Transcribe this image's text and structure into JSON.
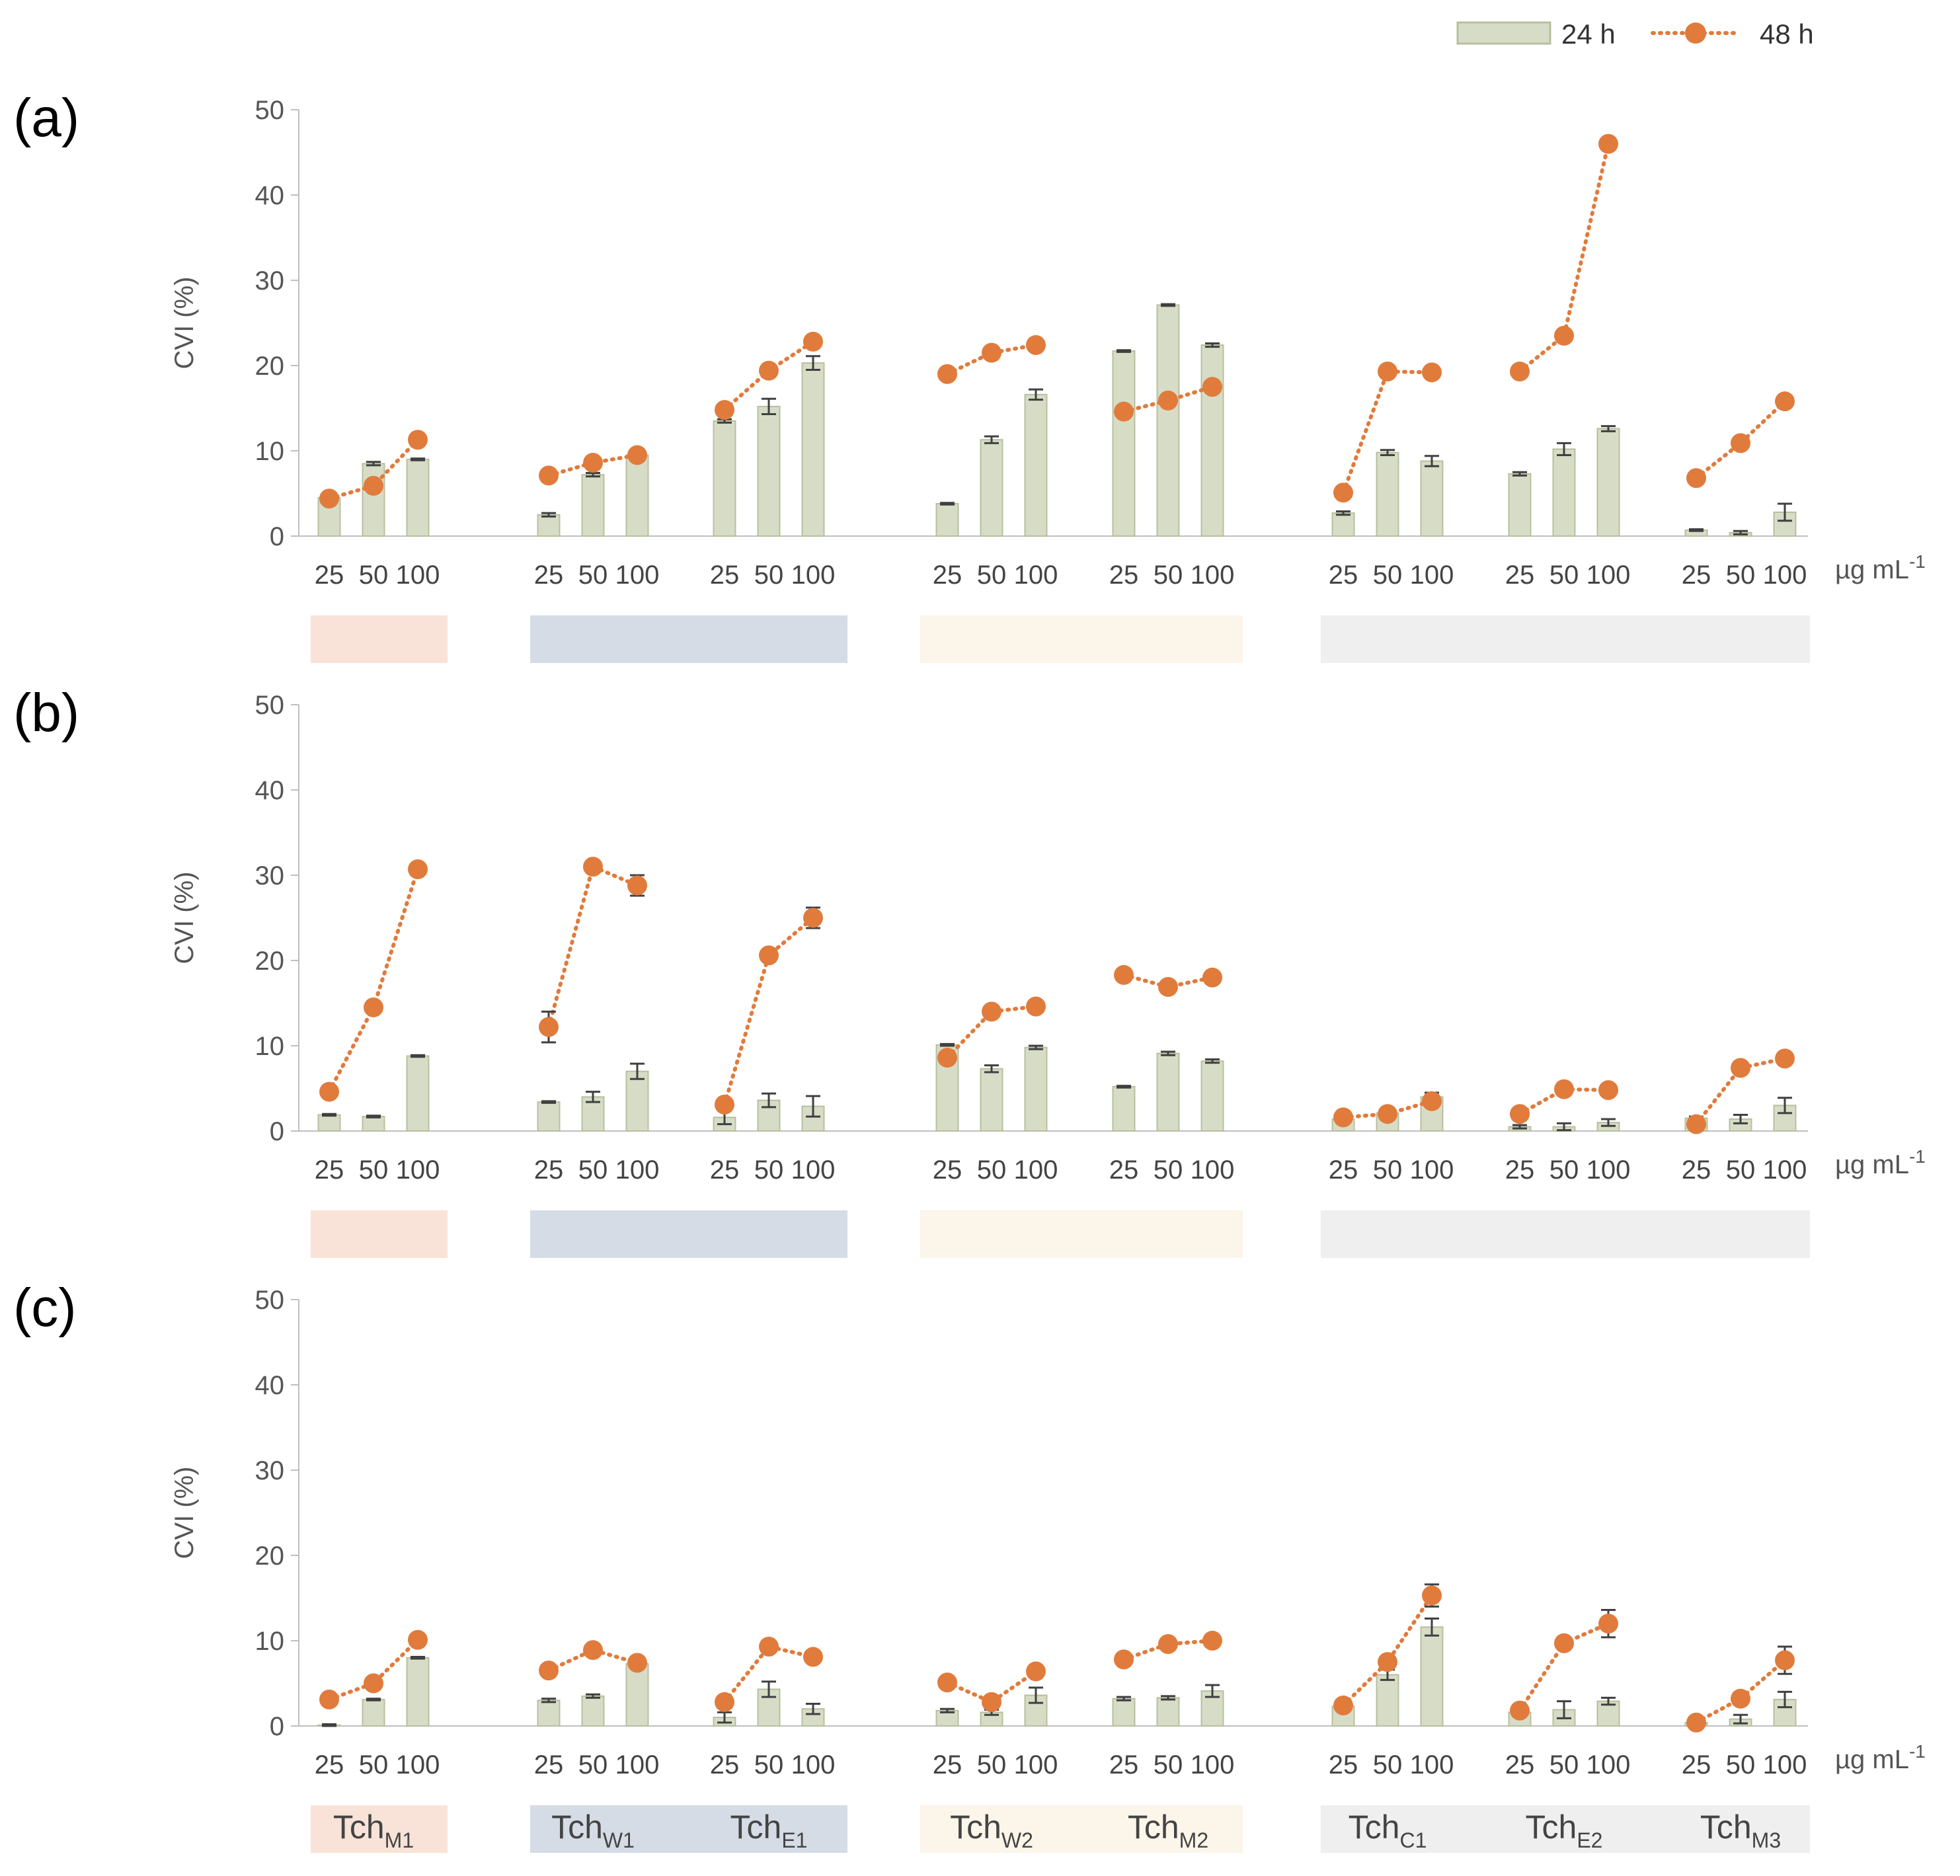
{
  "chart_data": {
    "type": "bar+line",
    "legend": [
      {
        "name": "24 h",
        "type": "bar",
        "color": "#d7dcc6"
      },
      {
        "name": "48 h",
        "type": "line-dotted-markers",
        "color": "#e07b3c"
      }
    ],
    "legend_position": "top-right",
    "ylabel": "CVI (%)",
    "ylim": [
      0,
      50
    ],
    "yticks": [
      0,
      10,
      20,
      30,
      40,
      50
    ],
    "x_unit": "µg mL",
    "x_unit_sup": "-1",
    "concentrations": [
      "25",
      "50",
      "100"
    ],
    "groups": [
      {
        "base": "Tch",
        "sub": "M1",
        "color": "#f9e3d8"
      },
      {
        "base": "Tch",
        "sub": "W1",
        "color": "#d5dce5"
      },
      {
        "base": "Tch",
        "sub": "E1",
        "color": "#d5dce5"
      },
      {
        "base": "Tch",
        "sub": "W2",
        "color": "#fbf5ea"
      },
      {
        "base": "Tch",
        "sub": "M2",
        "color": "#fbf5ea"
      },
      {
        "base": "Tch",
        "sub": "C1",
        "color": "#efefef"
      },
      {
        "base": "Tch",
        "sub": "E2",
        "color": "#efefef"
      },
      {
        "base": "Tch",
        "sub": "M3",
        "color": "#efefef"
      }
    ],
    "panels": [
      {
        "label": "(a)",
        "series": [
          {
            "name": "24 h",
            "values": [
              [
                4.5,
                8.5,
                9.0
              ],
              [
                2.5,
                7.2,
                9.5
              ],
              [
                13.5,
                15.2,
                20.3
              ],
              [
                3.8,
                11.3,
                16.6
              ],
              [
                21.7,
                27.1,
                22.4
              ],
              [
                2.7,
                9.8,
                8.8
              ],
              [
                7.3,
                10.2,
                12.6
              ],
              [
                0.7,
                0.4,
                2.8
              ]
            ]
          },
          {
            "name": "48 h",
            "values": [
              [
                4.4,
                5.9,
                11.3
              ],
              [
                7.1,
                8.6,
                9.5
              ],
              [
                14.8,
                19.4,
                22.8
              ],
              [
                19.0,
                21.5,
                22.4
              ],
              [
                14.6,
                15.9,
                17.5
              ],
              [
                5.1,
                19.3,
                19.2
              ],
              [
                19.3,
                23.5,
                46.0
              ],
              [
                6.8,
                10.9,
                15.8
              ]
            ]
          }
        ]
      },
      {
        "label": "(b)",
        "series": [
          {
            "name": "24 h",
            "values": [
              [
                1.9,
                1.7,
                8.8
              ],
              [
                3.4,
                4.0,
                7.0
              ],
              [
                1.6,
                3.6,
                2.9
              ],
              [
                10.1,
                7.3,
                9.8
              ],
              [
                5.2,
                9.1,
                8.2
              ],
              [
                1.4,
                2.1,
                4.0
              ],
              [
                0.5,
                0.5,
                1.0
              ],
              [
                1.5,
                1.4,
                3.0
              ]
            ]
          },
          {
            "name": "48 h",
            "values": [
              [
                4.6,
                14.5,
                30.7
              ],
              [
                12.2,
                31.0,
                28.8
              ],
              [
                3.1,
                20.6,
                25.0
              ],
              [
                8.6,
                14.0,
                14.6
              ],
              [
                18.3,
                16.9,
                18.0
              ],
              [
                1.6,
                2.0,
                3.5
              ],
              [
                2.0,
                4.9,
                4.8
              ],
              [
                0.8,
                7.4,
                8.5
              ]
            ]
          }
        ]
      },
      {
        "label": "(c)",
        "series": [
          {
            "name": "24 h",
            "values": [
              [
                0.1,
                3.1,
                8.0
              ],
              [
                3.0,
                3.5,
                7.3
              ],
              [
                1.0,
                4.3,
                2.0
              ],
              [
                1.8,
                1.6,
                3.6
              ],
              [
                3.2,
                3.3,
                4.1
              ],
              [
                2.3,
                6.0,
                11.6
              ],
              [
                1.6,
                1.9,
                2.9
              ],
              [
                0.4,
                0.8,
                3.1
              ]
            ]
          },
          {
            "name": "48 h",
            "values": [
              [
                3.1,
                5.0,
                10.1
              ],
              [
                6.5,
                8.9,
                7.4
              ],
              [
                2.8,
                9.3,
                8.1
              ],
              [
                5.1,
                2.8,
                6.4
              ],
              [
                7.8,
                9.6,
                10.0
              ],
              [
                2.4,
                7.5,
                15.3
              ],
              [
                1.8,
                9.7,
                12.0
              ],
              [
                0.4,
                3.2,
                7.7
              ]
            ]
          }
        ]
      }
    ],
    "error_bars": {
      "24 h": [
        [
          [
            0.2,
            0.2,
            0.1
          ],
          [
            0.2,
            0.2,
            0.2
          ],
          [
            0.2,
            0.9,
            0.8
          ],
          [
            0.1,
            0.4,
            0.6
          ],
          [
            0.1,
            0.1,
            0.2
          ],
          [
            0.2,
            0.3,
            0.6
          ],
          [
            0.2,
            0.7,
            0.3
          ],
          [
            0.1,
            0.2,
            1.0
          ]
        ],
        [
          [
            0.1,
            0.1,
            0.1
          ],
          [
            0.1,
            0.6,
            0.9
          ],
          [
            0.8,
            0.8,
            1.2
          ],
          [
            0.1,
            0.4,
            0.2
          ],
          [
            0.1,
            0.2,
            0.2
          ],
          [
            0.1,
            0.2,
            0.5
          ],
          [
            0.2,
            0.4,
            0.4
          ],
          [
            0.2,
            0.5,
            0.9
          ]
        ],
        [
          [
            0.1,
            0.1,
            0.1
          ],
          [
            0.2,
            0.2,
            0.2
          ],
          [
            0.6,
            0.9,
            0.6
          ],
          [
            0.2,
            0.3,
            0.9
          ],
          [
            0.2,
            0.2,
            0.7
          ],
          [
            0.3,
            0.6,
            1.0
          ],
          [
            0.3,
            1.0,
            0.4
          ],
          [
            0.2,
            0.5,
            0.9
          ]
        ]
      ],
      "48 h": [
        [
          [
            0,
            0,
            0
          ],
          [
            0,
            0,
            0
          ],
          [
            0,
            0,
            0
          ],
          [
            0,
            0,
            0
          ],
          [
            0,
            0,
            0
          ],
          [
            0,
            0,
            0
          ],
          [
            0,
            0,
            0
          ],
          [
            0,
            0,
            0
          ]
        ],
        [
          [
            0,
            0,
            0
          ],
          [
            1.8,
            0,
            1.2
          ],
          [
            0,
            0,
            1.2
          ],
          [
            0,
            0,
            0
          ],
          [
            0,
            0,
            0
          ],
          [
            0,
            0,
            0
          ],
          [
            0,
            0,
            0
          ],
          [
            0,
            0,
            0
          ]
        ],
        [
          [
            0,
            0,
            0
          ],
          [
            0,
            0,
            0
          ],
          [
            0,
            0,
            0
          ],
          [
            0,
            0,
            0
          ],
          [
            0,
            0,
            0
          ],
          [
            0,
            0,
            1.3
          ],
          [
            0,
            0,
            1.6
          ],
          [
            0,
            0,
            1.6
          ]
        ]
      ]
    }
  }
}
